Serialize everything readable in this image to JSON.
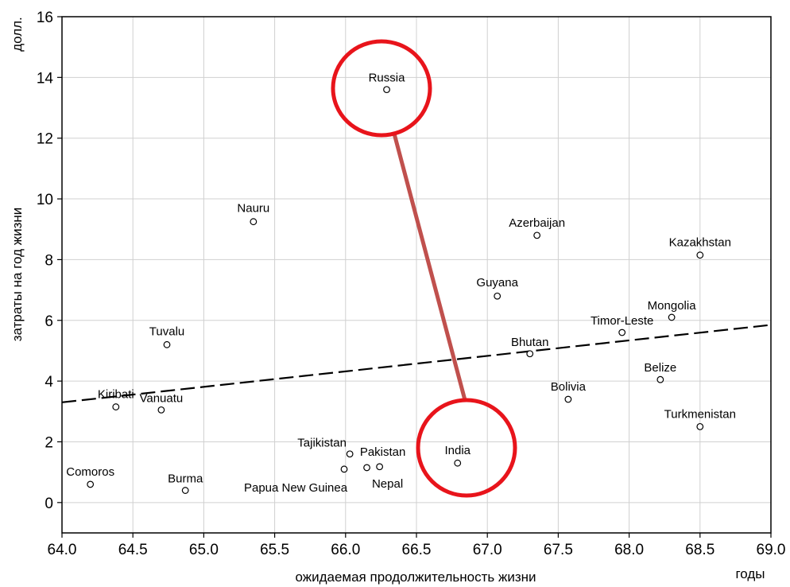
{
  "chart_data": {
    "type": "scatter",
    "title": "",
    "xlabel": "ожидаемая продолжительность жизни",
    "xunit": "годы",
    "ylabel": "затраты на год жизни",
    "yunit": "долл.",
    "xlim": [
      64.0,
      69.0
    ],
    "ylim": [
      -1,
      16
    ],
    "xticks": [
      "64.0",
      "64.5",
      "65.0",
      "65.5",
      "66.0",
      "66.5",
      "67.0",
      "67.5",
      "68.0",
      "68.5",
      "69.0"
    ],
    "yticks": [
      "0",
      "2",
      "4",
      "6",
      "8",
      "10",
      "12",
      "14",
      "16"
    ],
    "grid": true,
    "points": [
      {
        "label": "Russia",
        "x": 66.29,
        "y": 13.6
      },
      {
        "label": "Nauru",
        "x": 65.35,
        "y": 9.25
      },
      {
        "label": "Azerbaijan",
        "x": 67.35,
        "y": 8.8
      },
      {
        "label": "Kazakhstan",
        "x": 68.5,
        "y": 8.15
      },
      {
        "label": "Guyana",
        "x": 67.07,
        "y": 6.8
      },
      {
        "label": "Mongolia",
        "x": 68.3,
        "y": 6.1
      },
      {
        "label": "Timor-Leste",
        "x": 67.95,
        "y": 5.6
      },
      {
        "label": "Tuvalu",
        "x": 64.74,
        "y": 5.2
      },
      {
        "label": "Bhutan",
        "x": 67.3,
        "y": 4.9
      },
      {
        "label": "Belize",
        "x": 68.22,
        "y": 4.05
      },
      {
        "label": "Bolivia",
        "x": 67.57,
        "y": 3.4
      },
      {
        "label": "Kiribati",
        "x": 64.38,
        "y": 3.15
      },
      {
        "label": "Vanuatu",
        "x": 64.7,
        "y": 3.05
      },
      {
        "label": "Turkmenistan",
        "x": 68.5,
        "y": 2.5
      },
      {
        "label": "Tajikistan",
        "x": 66.03,
        "y": 1.6
      },
      {
        "label": "Pakistan",
        "x": 66.24,
        "y": 1.18
      },
      {
        "label": "Nepal",
        "x": 66.15,
        "y": 1.15
      },
      {
        "label": "Papua New Guinea",
        "x": 65.99,
        "y": 1.1
      },
      {
        "label": "India",
        "x": 66.79,
        "y": 1.3
      },
      {
        "label": "Comoros",
        "x": 64.2,
        "y": 0.6
      },
      {
        "label": "Burma",
        "x": 64.87,
        "y": 0.4
      }
    ],
    "trendline": {
      "style": "dashed",
      "x": [
        64.0,
        69.0
      ],
      "y": [
        3.3,
        5.85
      ]
    },
    "annotations": {
      "highlighted": [
        "Russia",
        "India"
      ],
      "circle_color": "#e8141b",
      "connector_color": "#c0504d"
    }
  }
}
